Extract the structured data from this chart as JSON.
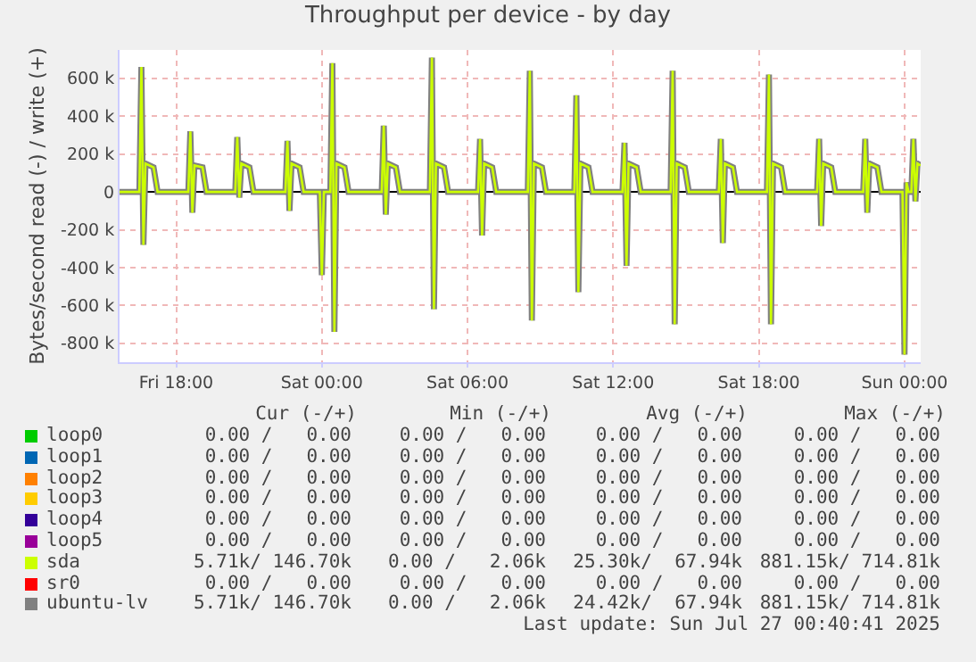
{
  "chart_data": {
    "type": "line",
    "title": "Throughput per device - by day",
    "ylabel": "Bytes/second read (-) / write (+)",
    "legend": "bottom",
    "grid": true,
    "marker": "none",
    "line_style": "solid",
    "xlim": [
      "2025-07-25T15:40",
      "2025-07-27T00:40"
    ],
    "xticks": [
      {
        "value": "2025-07-25T18:00",
        "label": "Fri 18:00"
      },
      {
        "value": "2025-07-26T00:00",
        "label": "Sat 00:00"
      },
      {
        "value": "2025-07-26T06:00",
        "label": "Sat 06:00"
      },
      {
        "value": "2025-07-26T12:00",
        "label": "Sat 12:00"
      },
      {
        "value": "2025-07-26T18:00",
        "label": "Sat 18:00"
      },
      {
        "value": "2025-07-27T00:00",
        "label": "Sun 00:00"
      }
    ],
    "ylim": [
      -900000,
      750000
    ],
    "yticks": [
      {
        "value": -800000,
        "label": "-800 k"
      },
      {
        "value": -600000,
        "label": "-600 k"
      },
      {
        "value": -400000,
        "label": "-400 k"
      },
      {
        "value": -200000,
        "label": "-200 k"
      },
      0,
      {
        "value": 200000,
        "label": "200 k"
      },
      {
        "value": 400000,
        "label": "400 k"
      },
      {
        "value": 600000,
        "label": "600 k"
      }
    ],
    "x": [
      "2025-07-25T15:40",
      "2025-07-25T16:29",
      "2025-07-25T16:34",
      "2025-07-25T16:39",
      "2025-07-25T16:44",
      "2025-07-25T17:04",
      "2025-07-25T17:14",
      "2025-07-25T18:30",
      "2025-07-25T18:35",
      "2025-07-25T18:40",
      "2025-07-25T18:45",
      "2025-07-25T19:05",
      "2025-07-25T19:15",
      "2025-07-25T20:26",
      "2025-07-25T20:31",
      "2025-07-25T20:36",
      "2025-07-25T20:41",
      "2025-07-25T21:01",
      "2025-07-25T21:11",
      "2025-07-25T22:30",
      "2025-07-25T22:35",
      "2025-07-25T22:40",
      "2025-07-25T22:45",
      "2025-07-25T23:05",
      "2025-07-25T23:15",
      "2025-07-25T23:55",
      "2025-07-26T00:00",
      "2025-07-26T00:05",
      "2025-07-26T00:21",
      "2025-07-26T00:26",
      "2025-07-26T00:31",
      "2025-07-26T00:36",
      "2025-07-26T00:56",
      "2025-07-26T01:06",
      "2025-07-26T02:28",
      "2025-07-26T02:33",
      "2025-07-26T02:38",
      "2025-07-26T02:43",
      "2025-07-26T03:03",
      "2025-07-26T03:13",
      "2025-07-26T04:27",
      "2025-07-26T04:32",
      "2025-07-26T04:37",
      "2025-07-26T04:42",
      "2025-07-26T05:02",
      "2025-07-26T05:12",
      "2025-07-26T06:26",
      "2025-07-26T06:31",
      "2025-07-26T06:36",
      "2025-07-26T06:41",
      "2025-07-26T07:01",
      "2025-07-26T07:11",
      "2025-07-26T08:29",
      "2025-07-26T08:34",
      "2025-07-26T08:39",
      "2025-07-26T08:44",
      "2025-07-26T09:04",
      "2025-07-26T09:14",
      "2025-07-26T10:24",
      "2025-07-26T10:29",
      "2025-07-26T10:34",
      "2025-07-26T10:39",
      "2025-07-26T10:59",
      "2025-07-26T11:09",
      "2025-07-26T12:23",
      "2025-07-26T12:28",
      "2025-07-26T12:33",
      "2025-07-26T12:38",
      "2025-07-26T12:58",
      "2025-07-26T13:08",
      "2025-07-26T14:22",
      "2025-07-26T14:27",
      "2025-07-26T14:32",
      "2025-07-26T14:37",
      "2025-07-26T14:57",
      "2025-07-26T15:07",
      "2025-07-26T16:21",
      "2025-07-26T16:26",
      "2025-07-26T16:31",
      "2025-07-26T16:36",
      "2025-07-26T16:56",
      "2025-07-26T17:06",
      "2025-07-26T18:20",
      "2025-07-26T18:25",
      "2025-07-26T18:30",
      "2025-07-26T18:35",
      "2025-07-26T18:55",
      "2025-07-26T19:05",
      "2025-07-26T20:24",
      "2025-07-26T20:29",
      "2025-07-26T20:34",
      "2025-07-26T20:39",
      "2025-07-26T20:59",
      "2025-07-26T21:09",
      "2025-07-26T22:18",
      "2025-07-26T22:23",
      "2025-07-26T22:28",
      "2025-07-26T22:33",
      "2025-07-26T22:53",
      "2025-07-26T23:03",
      "2025-07-26T23:55",
      "2025-07-27T00:00",
      "2025-07-27T00:05",
      "2025-07-27T00:10",
      "2025-07-27T00:17",
      "2025-07-27T00:22",
      "2025-07-27T00:27",
      "2025-07-27T00:32",
      "2025-07-27T00:40"
    ],
    "series": [
      {
        "name": "loop0",
        "color": "#00cc00",
        "values": [
          null,
          null,
          null,
          null,
          null,
          null,
          null,
          null,
          null,
          null,
          null,
          null,
          null,
          null,
          null,
          null,
          null,
          null,
          null,
          null,
          null,
          null,
          null,
          null,
          null,
          null,
          null,
          null,
          null,
          null,
          null,
          null,
          null,
          null,
          null,
          null,
          null,
          null,
          null,
          null,
          null,
          null,
          null,
          null,
          null,
          null,
          null,
          null,
          null,
          null,
          null,
          null,
          null,
          null,
          null,
          null,
          null,
          null,
          null,
          null,
          null,
          null,
          null,
          null,
          null,
          null,
          null,
          null,
          null,
          null,
          null,
          null,
          null,
          null,
          null,
          null,
          null,
          null,
          null,
          null,
          null,
          null,
          null,
          null,
          null,
          null,
          null,
          null,
          null,
          null,
          null,
          null,
          null,
          null,
          null,
          null,
          null,
          null,
          null,
          null,
          null,
          null,
          null,
          null,
          null,
          null,
          null,
          null,
          null
        ]
      },
      {
        "name": "loop1",
        "color": "#0066b3",
        "values": [
          null,
          null,
          null,
          null,
          null,
          null,
          null,
          null,
          null,
          null,
          null,
          null,
          null,
          null,
          null,
          null,
          null,
          null,
          null,
          null,
          null,
          null,
          null,
          null,
          null,
          null,
          null,
          null,
          null,
          null,
          null,
          null,
          null,
          null,
          null,
          null,
          null,
          null,
          null,
          null,
          null,
          null,
          null,
          null,
          null,
          null,
          null,
          null,
          null,
          null,
          null,
          null,
          null,
          null,
          null,
          null,
          null,
          null,
          null,
          null,
          null,
          null,
          null,
          null,
          null,
          null,
          null,
          null,
          null,
          null,
          null,
          null,
          null,
          null,
          null,
          null,
          null,
          null,
          null,
          null,
          null,
          null,
          null,
          null,
          null,
          null,
          null,
          null,
          null,
          null,
          null,
          null,
          null,
          null,
          null,
          null,
          null,
          null,
          null,
          null,
          null,
          null,
          null,
          null,
          null,
          null,
          null,
          null,
          null
        ]
      },
      {
        "name": "loop2",
        "color": "#ff8000",
        "values": [
          null,
          null,
          null,
          null,
          null,
          null,
          null,
          null,
          null,
          null,
          null,
          null,
          null,
          null,
          null,
          null,
          null,
          null,
          null,
          null,
          null,
          null,
          null,
          null,
          null,
          null,
          null,
          null,
          null,
          null,
          null,
          null,
          null,
          null,
          null,
          null,
          null,
          null,
          null,
          null,
          null,
          null,
          null,
          null,
          null,
          null,
          null,
          null,
          null,
          null,
          null,
          null,
          null,
          null,
          null,
          null,
          null,
          null,
          null,
          null,
          null,
          null,
          null,
          null,
          null,
          null,
          null,
          null,
          null,
          null,
          null,
          null,
          null,
          null,
          null,
          null,
          null,
          null,
          null,
          null,
          null,
          null,
          null,
          null,
          null,
          null,
          null,
          null,
          null,
          null,
          null,
          null,
          null,
          null,
          null,
          null,
          null,
          null,
          null,
          null,
          null,
          null,
          null,
          null,
          null,
          null,
          null,
          null,
          null
        ]
      },
      {
        "name": "loop3",
        "color": "#ffcc00",
        "values": [
          null,
          null,
          null,
          null,
          null,
          null,
          null,
          null,
          null,
          null,
          null,
          null,
          null,
          null,
          null,
          null,
          null,
          null,
          null,
          null,
          null,
          null,
          null,
          null,
          null,
          null,
          null,
          null,
          null,
          null,
          null,
          null,
          null,
          null,
          null,
          null,
          null,
          null,
          null,
          null,
          null,
          null,
          null,
          null,
          null,
          null,
          null,
          null,
          null,
          null,
          null,
          null,
          null,
          null,
          null,
          null,
          null,
          null,
          null,
          null,
          null,
          null,
          null,
          null,
          null,
          null,
          null,
          null,
          null,
          null,
          null,
          null,
          null,
          null,
          null,
          null,
          null,
          null,
          null,
          null,
          null,
          null,
          null,
          null,
          null,
          null,
          null,
          null,
          null,
          null,
          null,
          null,
          null,
          null,
          null,
          null,
          null,
          null,
          null,
          null,
          null,
          null,
          null,
          null,
          null,
          null,
          null,
          null,
          null
        ]
      },
      {
        "name": "loop4",
        "color": "#330099",
        "values": [
          null,
          null,
          null,
          null,
          null,
          null,
          null,
          null,
          null,
          null,
          null,
          null,
          null,
          null,
          null,
          null,
          null,
          null,
          null,
          null,
          null,
          null,
          null,
          null,
          null,
          null,
          null,
          null,
          null,
          null,
          null,
          null,
          null,
          null,
          null,
          null,
          null,
          null,
          null,
          null,
          null,
          null,
          null,
          null,
          null,
          null,
          null,
          null,
          null,
          null,
          null,
          null,
          null,
          null,
          null,
          null,
          null,
          null,
          null,
          null,
          null,
          null,
          null,
          null,
          null,
          null,
          null,
          null,
          null,
          null,
          null,
          null,
          null,
          null,
          null,
          null,
          null,
          null,
          null,
          null,
          null,
          null,
          null,
          null,
          null,
          null,
          null,
          null,
          null,
          null,
          null,
          null,
          null,
          null,
          null,
          null,
          null,
          null,
          null,
          null,
          null,
          null,
          null,
          null,
          null,
          null,
          null,
          null,
          null
        ]
      },
      {
        "name": "loop5",
        "color": "#990099",
        "values": [
          null,
          null,
          null,
          null,
          null,
          null,
          null,
          null,
          null,
          null,
          null,
          null,
          null,
          null,
          null,
          null,
          null,
          null,
          null,
          null,
          null,
          null,
          null,
          null,
          null,
          null,
          null,
          null,
          null,
          null,
          null,
          null,
          null,
          null,
          null,
          null,
          null,
          null,
          null,
          null,
          null,
          null,
          null,
          null,
          null,
          null,
          null,
          null,
          null,
          null,
          null,
          null,
          null,
          null,
          null,
          null,
          null,
          null,
          null,
          null,
          null,
          null,
          null,
          null,
          null,
          null,
          null,
          null,
          null,
          null,
          null,
          null,
          null,
          null,
          null,
          null,
          null,
          null,
          null,
          null,
          null,
          null,
          null,
          null,
          null,
          null,
          null,
          null,
          null,
          null,
          null,
          null,
          null,
          null,
          null,
          null,
          null,
          null,
          null,
          null,
          null,
          null,
          null,
          null,
          null,
          null,
          null,
          null,
          null
        ]
      },
      {
        "name": "sda",
        "color": "#ccff00",
        "values": [
          0,
          0,
          660000,
          -280000,
          150000,
          130000,
          0,
          0,
          320000,
          -110000,
          140000,
          130000,
          0,
          0,
          290000,
          -30000,
          150000,
          130000,
          0,
          0,
          270000,
          -100000,
          150000,
          130000,
          0,
          0,
          -440000,
          0,
          0,
          680000,
          -740000,
          150000,
          130000,
          0,
          0,
          350000,
          -120000,
          150000,
          130000,
          0,
          0,
          710000,
          -620000,
          150000,
          130000,
          0,
          0,
          280000,
          -230000,
          150000,
          130000,
          0,
          0,
          640000,
          -680000,
          150000,
          130000,
          0,
          0,
          510000,
          -530000,
          150000,
          130000,
          0,
          0,
          260000,
          -390000,
          150000,
          130000,
          0,
          0,
          640000,
          -700000,
          150000,
          130000,
          0,
          0,
          280000,
          -270000,
          150000,
          130000,
          0,
          0,
          620000,
          -700000,
          150000,
          130000,
          0,
          0,
          280000,
          -180000,
          150000,
          130000,
          0,
          0,
          280000,
          -110000,
          150000,
          130000,
          0,
          0,
          -860000,
          50000,
          0,
          0,
          280000,
          -50000,
          150000,
          140000
        ]
      },
      {
        "name": "sr0",
        "color": "#ff0000",
        "values": [
          null,
          null,
          null,
          null,
          null,
          null,
          null,
          null,
          null,
          null,
          null,
          null,
          null,
          null,
          null,
          null,
          null,
          null,
          null,
          null,
          null,
          null,
          null,
          null,
          null,
          null,
          null,
          null,
          null,
          null,
          null,
          null,
          null,
          null,
          null,
          null,
          null,
          null,
          null,
          null,
          null,
          null,
          null,
          null,
          null,
          null,
          null,
          null,
          null,
          null,
          null,
          null,
          null,
          null,
          null,
          null,
          null,
          null,
          null,
          null,
          null,
          null,
          null,
          null,
          null,
          null,
          null,
          null,
          null,
          null,
          null,
          null,
          null,
          null,
          null,
          null,
          null,
          null,
          null,
          null,
          null,
          null,
          null,
          null,
          null,
          null,
          null,
          null,
          null,
          null,
          null,
          null,
          null,
          null,
          null,
          null,
          null,
          null,
          null,
          null,
          null,
          null,
          null,
          null,
          null,
          null,
          null,
          null,
          null
        ]
      },
      {
        "name": "ubuntu-lv",
        "color": "#808080",
        "values": [
          0,
          0,
          660000,
          -280000,
          150000,
          130000,
          0,
          0,
          320000,
          -110000,
          140000,
          130000,
          0,
          0,
          290000,
          -30000,
          150000,
          130000,
          0,
          0,
          270000,
          -100000,
          150000,
          130000,
          0,
          0,
          -440000,
          0,
          0,
          680000,
          -740000,
          150000,
          130000,
          0,
          0,
          350000,
          -120000,
          150000,
          130000,
          0,
          0,
          710000,
          -620000,
          150000,
          130000,
          0,
          0,
          280000,
          -230000,
          150000,
          130000,
          0,
          0,
          640000,
          -680000,
          150000,
          130000,
          0,
          0,
          510000,
          -530000,
          150000,
          130000,
          0,
          0,
          260000,
          -390000,
          150000,
          130000,
          0,
          0,
          640000,
          -700000,
          150000,
          130000,
          0,
          0,
          280000,
          -270000,
          150000,
          130000,
          0,
          0,
          620000,
          -700000,
          150000,
          130000,
          0,
          0,
          280000,
          -180000,
          150000,
          130000,
          0,
          0,
          280000,
          -110000,
          150000,
          130000,
          0,
          0,
          -860000,
          50000,
          0,
          0,
          280000,
          -50000,
          150000,
          140000
        ]
      }
    ],
    "annotations": [
      "Cur (-/+)",
      "Min (-/+)",
      "Avg (-/+)",
      "Max (-/+)",
      "0.00 /   0.00",
      "0.00 /   0.00",
      "0.00 /   0.00",
      "0.00 /   0.00",
      "0.00 /   0.00",
      "0.00 /   0.00",
      "0.00 /   0.00",
      "0.00 /   0.00",
      "0.00 /   0.00",
      "0.00 /   0.00",
      "0.00 /   0.00",
      "0.00 /   0.00",
      "0.00 /   0.00",
      "0.00 /   0.00",
      "0.00 /   0.00",
      "0.00 /   0.00",
      "0.00 /   0.00",
      "0.00 /   0.00",
      "0.00 /   0.00",
      "0.00 /   0.00",
      "0.00 /   0.00",
      "0.00 /   0.00",
      "0.00 /   0.00",
      "0.00 /   0.00",
      "5.71k/ 146.70k",
      "0.00 /   2.06k",
      "25.30k/  67.94k",
      "881.15k/ 714.81k",
      "0.00 /   0.00",
      "0.00 /   0.00",
      "0.00 /   0.00",
      "0.00 /   0.00",
      "5.71k/ 146.70k",
      "0.00 /   2.06k",
      "24.42k/  67.94k",
      "881.15k/ 714.81k",
      "Last update: Sun Jul 27 00:40:41 2025"
    ]
  }
}
